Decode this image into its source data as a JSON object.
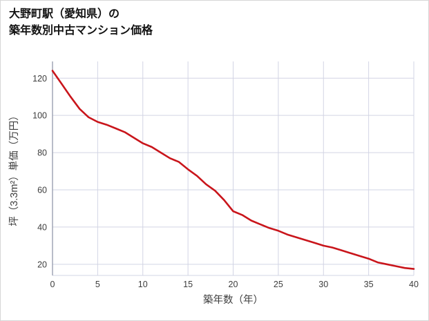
{
  "title": {
    "line1": "大野町駅（愛知県）の",
    "line2": "築年数別中古マンション価格"
  },
  "chart_data": {
    "type": "line",
    "title": "大野町駅（愛知県）の築年数別中古マンション価格",
    "xlabel": "築年数（年）",
    "ylabel": "坪（3.3m²）単価（万円）",
    "x": [
      0,
      1,
      2,
      3,
      4,
      5,
      6,
      7,
      8,
      9,
      10,
      11,
      12,
      13,
      14,
      15,
      16,
      17,
      18,
      19,
      20,
      21,
      22,
      23,
      24,
      25,
      26,
      27,
      28,
      29,
      30,
      31,
      32,
      33,
      34,
      35,
      36,
      37,
      38,
      39,
      40
    ],
    "values": [
      124,
      117,
      110,
      103.5,
      99,
      96.5,
      95,
      93,
      91,
      88,
      85,
      83,
      80,
      77,
      75,
      71,
      67.5,
      63,
      59.5,
      54.5,
      48.5,
      46.5,
      43.5,
      41.5,
      39.5,
      38,
      36,
      34.5,
      33,
      31.5,
      30,
      29,
      27.5,
      26,
      24.5,
      23,
      21,
      20,
      19,
      18,
      17.5
    ],
    "xlim": [
      0,
      40
    ],
    "ylim": [
      14,
      129
    ],
    "xticks": [
      0,
      5,
      10,
      15,
      20,
      25,
      30,
      35,
      40
    ],
    "yticks": [
      20,
      40,
      60,
      80,
      100,
      120
    ],
    "grid": true,
    "legend": "none",
    "line_color": "#c9151b",
    "grid_color": "#d2d4e4",
    "axis_color": "#9aa0b0",
    "tick_color": "#3c3c3c"
  }
}
